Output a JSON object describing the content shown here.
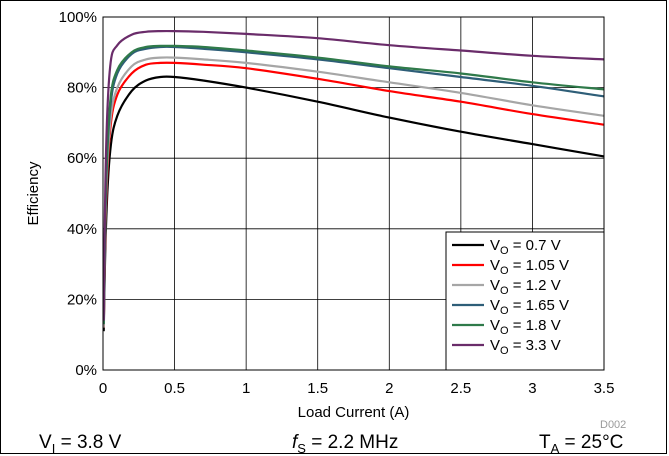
{
  "chart_data": {
    "type": "line",
    "xlabel": "Load Current (A)",
    "ylabel": "Efficiency",
    "xlim": [
      0,
      3.5
    ],
    "ylim": [
      0,
      100
    ],
    "x_ticks": [
      "0",
      "0.5",
      "1",
      "1.5",
      "2",
      "2.5",
      "3",
      "3.5"
    ],
    "y_ticks": [
      "0%",
      "20%",
      "40%",
      "60%",
      "80%",
      "100%"
    ],
    "grid": true,
    "legend_position": "bottom-right",
    "series": [
      {
        "name_main": "V",
        "name_sub": "O",
        "name_rest": " = 0.7 V",
        "color": "#000000",
        "x": [
          0.005,
          0.02,
          0.05,
          0.1,
          0.2,
          0.3,
          0.4,
          0.5,
          0.7,
          1.0,
          1.5,
          2.0,
          2.5,
          3.0,
          3.5
        ],
        "y": [
          11,
          40,
          62,
          72,
          79,
          82,
          83,
          83,
          82,
          80,
          76,
          71.5,
          67.5,
          64,
          60.5
        ]
      },
      {
        "name_main": "V",
        "name_sub": "O",
        "name_rest": " = 1.05 V",
        "color": "#ff0000",
        "x": [
          0.005,
          0.02,
          0.05,
          0.1,
          0.2,
          0.3,
          0.4,
          0.5,
          0.7,
          1.0,
          1.5,
          2.0,
          2.5,
          3.0,
          3.5
        ],
        "y": [
          12,
          45,
          68,
          78,
          84,
          86.5,
          87,
          87,
          86.5,
          85.5,
          82.5,
          79,
          76,
          72.5,
          69.5
        ]
      },
      {
        "name_main": "V",
        "name_sub": "O",
        "name_rest": " = 1.2 V",
        "color": "#a6a6a6",
        "x": [
          0.005,
          0.02,
          0.05,
          0.1,
          0.2,
          0.3,
          0.4,
          0.5,
          0.7,
          1.0,
          1.5,
          2.0,
          2.5,
          3.0,
          3.5
        ],
        "y": [
          12,
          47,
          70,
          80,
          86,
          88,
          88.5,
          88.5,
          88,
          87,
          84.5,
          81.5,
          78.5,
          75,
          72
        ]
      },
      {
        "name_main": "V",
        "name_sub": "O",
        "name_rest": " = 1.65 V",
        "color": "#2e5e78",
        "x": [
          0.005,
          0.02,
          0.05,
          0.1,
          0.2,
          0.3,
          0.4,
          0.5,
          0.7,
          1.0,
          1.5,
          2.0,
          2.5,
          3.0,
          3.5
        ],
        "y": [
          13,
          50,
          74,
          84,
          89.5,
          91,
          91.5,
          91.5,
          91,
          90,
          88,
          85.5,
          83,
          80.5,
          77.5
        ]
      },
      {
        "name_main": "V",
        "name_sub": "O",
        "name_rest": " = 1.8 V",
        "color": "#2f7a4a",
        "x": [
          0.005,
          0.02,
          0.05,
          0.1,
          0.2,
          0.3,
          0.4,
          0.5,
          0.7,
          1.0,
          1.5,
          2.0,
          2.5,
          3.0,
          3.5
        ],
        "y": [
          13,
          51,
          76,
          85,
          90,
          91.5,
          91.8,
          91.8,
          91.5,
          90.5,
          88.5,
          86,
          84,
          81.5,
          79.5
        ]
      },
      {
        "name_main": "V",
        "name_sub": "O",
        "name_rest": " = 3.3 V",
        "color": "#6a2c6a",
        "x": [
          0.005,
          0.02,
          0.05,
          0.1,
          0.2,
          0.3,
          0.4,
          0.5,
          0.7,
          1.0,
          1.5,
          2.0,
          2.5,
          3.0,
          3.5
        ],
        "y": [
          14,
          60,
          86,
          92,
          95,
          95.8,
          96,
          96,
          95.8,
          95.2,
          94,
          92,
          90.5,
          89,
          88
        ]
      }
    ]
  },
  "footer": {
    "vi_main": "V",
    "vi_sub": "I",
    "vi_rest": " = 3.8 V",
    "fs_main": "f",
    "fs_sub": "S",
    "fs_rest": " = 2.2 MHz",
    "ta_main": "T",
    "ta_sub": "A",
    "ta_rest": " = 25°C"
  },
  "figure_code": "D002"
}
